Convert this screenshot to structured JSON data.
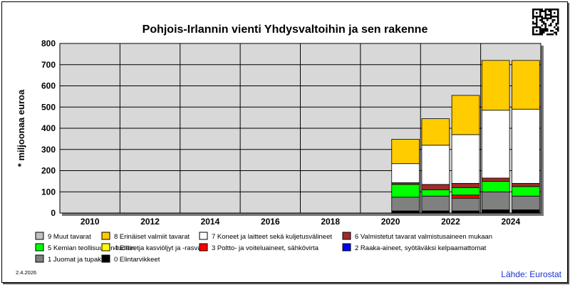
{
  "chart_data": {
    "type": "bar",
    "stacked": true,
    "title": "Pohjois-Irlannin vienti Yhdysvaltoihin ja sen rakenne",
    "ylabel": "* miljoonaa euroa",
    "xlabel": "",
    "ylim": [
      0,
      800
    ],
    "yticks": [
      0,
      100,
      200,
      300,
      400,
      500,
      600,
      700,
      800
    ],
    "xtick_labels": [
      "2010",
      "2012",
      "2014",
      "2016",
      "2018",
      "2020",
      "2022",
      "2024"
    ],
    "categories": [
      "2010",
      "2011",
      "2012",
      "2013",
      "2014",
      "2015",
      "2016",
      "2017",
      "2018",
      "2019",
      "2020",
      "2021",
      "2022",
      "2023",
      "2024",
      "2025"
    ],
    "grid": true,
    "legend_position": "bottom",
    "series": [
      {
        "name": "0 Elintarvikkeet",
        "color": "#000000",
        "values": [
          0,
          0,
          0,
          0,
          0,
          0,
          0,
          0,
          0,
          0,
          0,
          10,
          10,
          10,
          15,
          15
        ]
      },
      {
        "name": "1 Juomat ja tupakka",
        "color": "#808080",
        "values": [
          0,
          0,
          0,
          0,
          0,
          0,
          0,
          0,
          0,
          0,
          0,
          65,
          70,
          60,
          85,
          65
        ]
      },
      {
        "name": "2 Raaka-aineet, syötäväksi kelpaamattomat",
        "color": "#0000ff",
        "values": [
          0,
          0,
          0,
          0,
          0,
          0,
          0,
          0,
          0,
          0,
          0,
          0,
          0,
          0,
          0,
          0
        ]
      },
      {
        "name": "3 Poltto- ja voiteluaineet, sähkövirta",
        "color": "#ff0000",
        "values": [
          0,
          0,
          0,
          0,
          0,
          0,
          0,
          0,
          0,
          0,
          0,
          0,
          0,
          15,
          0,
          0
        ]
      },
      {
        "name": "4 Eläin- ja kasviöljyt ja -rasvat",
        "color": "#ffff00",
        "values": [
          0,
          0,
          0,
          0,
          0,
          0,
          0,
          0,
          0,
          0,
          0,
          0,
          0,
          0,
          0,
          0
        ]
      },
      {
        "name": "5 Kemian teollisuuden tuotteet",
        "color": "#00ff00",
        "values": [
          0,
          0,
          0,
          0,
          0,
          0,
          0,
          0,
          0,
          0,
          0,
          60,
          30,
          35,
          50,
          45
        ]
      },
      {
        "name": "6 Valmistetut tavarat valmistusaineen mukaan",
        "color": "#a52a2a",
        "values": [
          0,
          0,
          0,
          0,
          0,
          0,
          0,
          0,
          0,
          0,
          0,
          8,
          25,
          20,
          15,
          15
        ]
      },
      {
        "name": "7 Koneet ja laitteet sekä kuljetusvälineet",
        "color": "#ffffff",
        "values": [
          0,
          0,
          0,
          0,
          0,
          0,
          0,
          0,
          0,
          0,
          0,
          90,
          185,
          230,
          320,
          350
        ]
      },
      {
        "name": "8 Erinäiset valmiit tavarat",
        "color": "#ffcc00",
        "values": [
          0,
          0,
          0,
          0,
          0,
          0,
          0,
          0,
          0,
          0,
          0,
          115,
          125,
          185,
          235,
          230
        ]
      },
      {
        "name": "9 Muut tavarat",
        "color": "#c0c0c0",
        "values": [
          0,
          0,
          0,
          0,
          0,
          0,
          0,
          0,
          0,
          0,
          0,
          0,
          0,
          0,
          0,
          0
        ]
      }
    ]
  },
  "legend_order": [
    9,
    8,
    7,
    6,
    5,
    4,
    3,
    2,
    1,
    0
  ],
  "date": "2.4.2026",
  "source": "Lähde: Eurostat"
}
